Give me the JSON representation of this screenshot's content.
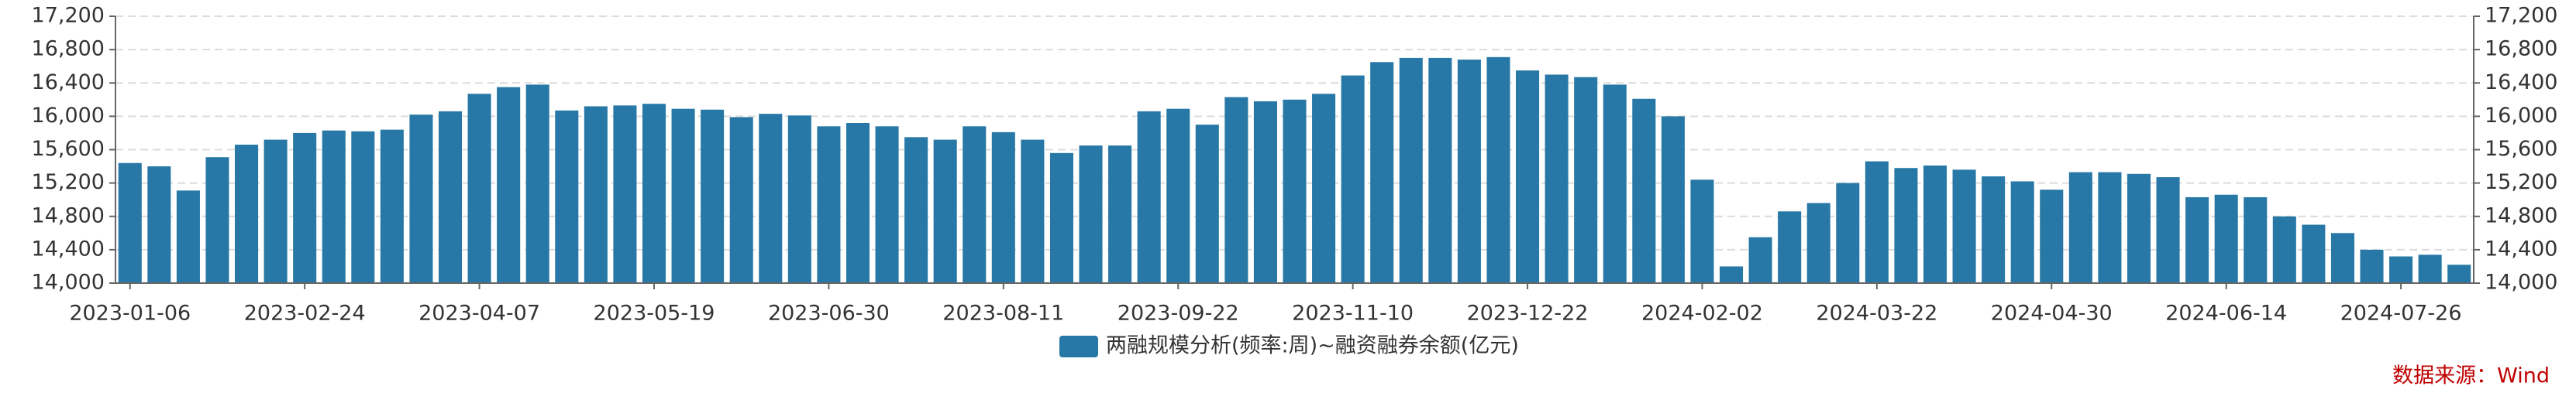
{
  "chart_data": {
    "type": "bar",
    "series": [
      {
        "name": "两融规模分析(频率:周)~融资融券余额(亿元)",
        "color": "#2778a6",
        "values": [
          15440,
          15400,
          15110,
          15510,
          15660,
          15720,
          15800,
          15830,
          15820,
          15840,
          16020,
          16060,
          16270,
          16350,
          16380,
          16070,
          16120,
          16130,
          16150,
          16090,
          16080,
          15990,
          16030,
          16010,
          15880,
          15920,
          15880,
          15750,
          15720,
          15880,
          15810,
          15720,
          15560,
          15650,
          15650,
          16060,
          16090,
          15900,
          16230,
          16180,
          16200,
          16270,
          16490,
          16650,
          16700,
          16700,
          16680,
          16710,
          16550,
          16500,
          16470,
          16380,
          16210,
          16000,
          15240,
          14200,
          14550,
          14860,
          14960,
          15200,
          15460,
          15380,
          15410,
          15360,
          15280,
          15220,
          15120,
          15330,
          15330,
          15310,
          15270,
          15030,
          15060,
          15030,
          14800,
          14700,
          14600,
          14400,
          14320,
          14340,
          14220
        ]
      }
    ],
    "categories": [
      "2023-01-06",
      null,
      null,
      null,
      null,
      null,
      "2023-02-24",
      null,
      null,
      null,
      null,
      null,
      "2023-04-07",
      null,
      null,
      null,
      null,
      null,
      "2023-05-19",
      null,
      null,
      null,
      null,
      null,
      "2023-06-30",
      null,
      null,
      null,
      null,
      null,
      "2023-08-11",
      null,
      null,
      null,
      null,
      null,
      "2023-09-22",
      null,
      null,
      null,
      null,
      null,
      "2023-11-10",
      null,
      null,
      null,
      null,
      null,
      "2023-12-22",
      null,
      null,
      null,
      null,
      null,
      "2024-02-02",
      null,
      null,
      null,
      null,
      null,
      "2024-03-22",
      null,
      null,
      null,
      null,
      null,
      "2024-04-30",
      null,
      null,
      null,
      null,
      null,
      "2024-06-14",
      null,
      null,
      null,
      null,
      null,
      "2024-07-26",
      null,
      null
    ],
    "ylim": [
      14000,
      17200
    ],
    "yticks": [
      {
        "value": 14000,
        "label": "14,000"
      },
      {
        "value": 14400,
        "label": "14,400"
      },
      {
        "value": 14800,
        "label": "14,800"
      },
      {
        "value": 15200,
        "label": "15,200"
      },
      {
        "value": 15600,
        "label": "15,600"
      },
      {
        "value": 16000,
        "label": "16,000"
      },
      {
        "value": 16400,
        "label": "16,400"
      },
      {
        "value": 16800,
        "label": "16,800"
      },
      {
        "value": 17200,
        "label": "17,200"
      }
    ],
    "grid": true,
    "source": "数据来源：Wind"
  }
}
